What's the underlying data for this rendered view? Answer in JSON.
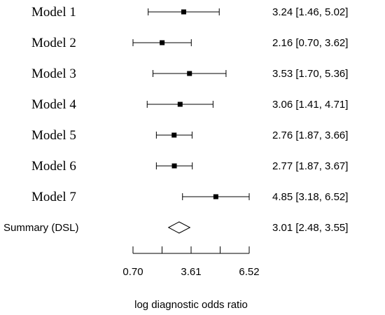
{
  "chart_data": {
    "type": "forest",
    "xlabel": "log diagnostic odds ratio",
    "xlim": [
      0.7,
      6.52
    ],
    "x_ticks": [
      0.7,
      2.155,
      3.61,
      5.065,
      6.52
    ],
    "x_tick_labels": [
      "0.70",
      "",
      "3.61",
      "",
      "6.52"
    ],
    "studies": [
      {
        "label": "Model 1",
        "estimate": 3.24,
        "lower": 1.46,
        "upper": 5.02,
        "ci_text": "3.24 [1.46, 5.02]"
      },
      {
        "label": "Model 2",
        "estimate": 2.16,
        "lower": 0.7,
        "upper": 3.62,
        "ci_text": "2.16 [0.70, 3.62]"
      },
      {
        "label": "Model 3",
        "estimate": 3.53,
        "lower": 1.7,
        "upper": 5.36,
        "ci_text": "3.53 [1.70, 5.36]"
      },
      {
        "label": "Model 4",
        "estimate": 3.06,
        "lower": 1.41,
        "upper": 4.71,
        "ci_text": "3.06 [1.41, 4.71]"
      },
      {
        "label": "Model 5",
        "estimate": 2.76,
        "lower": 1.87,
        "upper": 3.66,
        "ci_text": "2.76 [1.87, 3.66]"
      },
      {
        "label": "Model 6",
        "estimate": 2.77,
        "lower": 1.87,
        "upper": 3.67,
        "ci_text": "2.77 [1.87, 3.67]"
      },
      {
        "label": "Model 7",
        "estimate": 4.85,
        "lower": 3.18,
        "upper": 6.52,
        "ci_text": "4.85 [3.18, 6.52]"
      }
    ],
    "summary": {
      "label": "Summary (DSL)",
      "estimate": 3.01,
      "lower": 2.48,
      "upper": 3.55,
      "ci_text": "3.01 [2.48, 3.55]"
    }
  }
}
